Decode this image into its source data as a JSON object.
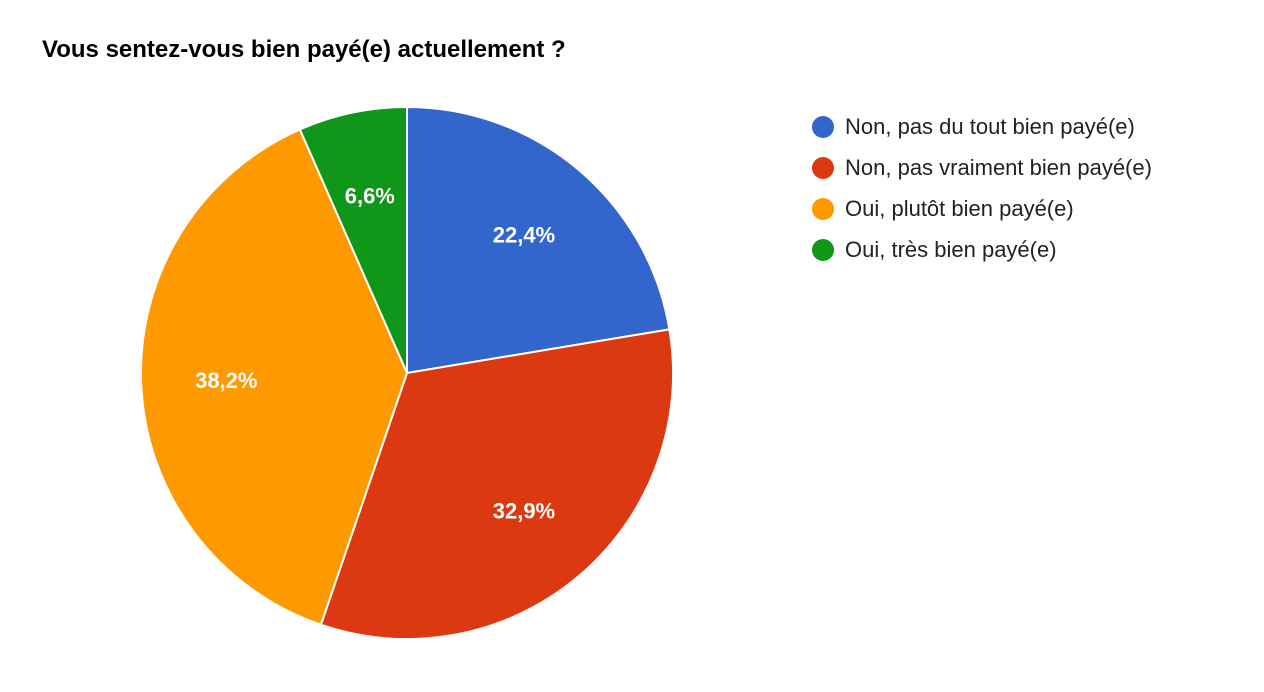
{
  "chart_data": {
    "type": "pie",
    "title": "Vous sentez-vous bien payé(e) actuellement ?",
    "legend_position": "right",
    "slices": [
      {
        "name": "Non, pas du tout bien payé(e)",
        "value": 22.4,
        "label": "22,4%",
        "color": "#3366cc"
      },
      {
        "name": "Non, pas vraiment bien payé(e)",
        "value": 32.9,
        "label": "32,9%",
        "color": "#dc3912"
      },
      {
        "name": "Oui, plutôt bien payé(e)",
        "value": 38.2,
        "label": "38,2%",
        "color": "#ff9900"
      },
      {
        "name": "Oui, très bien payé(e)",
        "value": 6.6,
        "label": "6,6%",
        "color": "#109618"
      }
    ]
  }
}
